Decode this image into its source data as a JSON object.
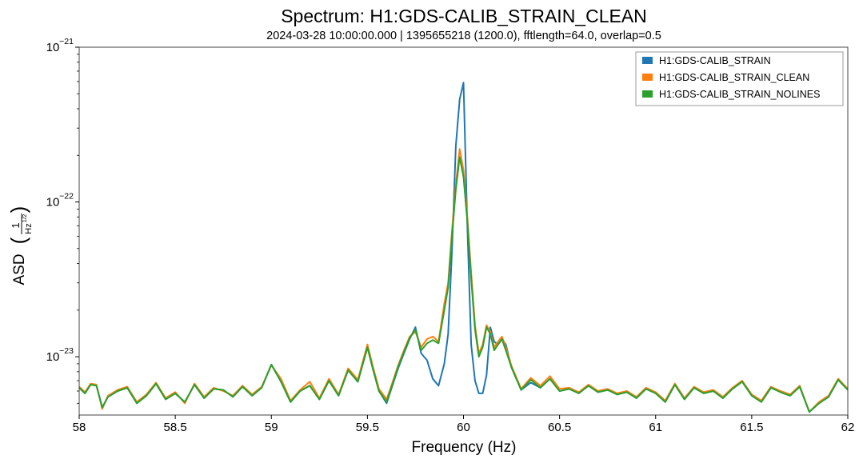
{
  "chart_data": {
    "type": "line",
    "title": "Spectrum: H1:GDS-CALIB_STRAIN_CLEAN",
    "subtitle": "2024-03-28 10:00:00.000 | 1395655218 (1200.0), fftlength=64.0, overlap=0.5",
    "xlabel": "Frequency (Hz)",
    "ylabel": {
      "prefix": "ASD",
      "numerator": "1",
      "denominator": "Hz",
      "denominator_exponent": "1/2"
    },
    "xlim": [
      58,
      62
    ],
    "ylim": [
      4.2e-24,
      1e-21
    ],
    "yscale": "log",
    "grid": false,
    "legend_position": "top-right",
    "x_ticks": [
      "58",
      "58.5",
      "59",
      "59.5",
      "60",
      "60.5",
      "61",
      "61.5",
      "62"
    ],
    "y_ticks": [
      {
        "base": "10",
        "exponent": "−21",
        "value": 1e-21
      },
      {
        "base": "10",
        "exponent": "−22",
        "value": 1e-22
      },
      {
        "base": "10",
        "exponent": "−23",
        "value": 1e-23
      }
    ],
    "series": [
      {
        "name": "H1:GDS-CALIB_STRAIN",
        "color": "#1f77b4",
        "x": [
          58.0,
          58.03,
          58.06,
          58.09,
          58.12,
          58.15,
          58.2,
          58.25,
          58.3,
          58.35,
          58.4,
          58.45,
          58.5,
          58.55,
          58.6,
          58.65,
          58.7,
          58.75,
          58.8,
          58.85,
          58.9,
          58.95,
          59.0,
          59.05,
          59.1,
          59.15,
          59.2,
          59.25,
          59.3,
          59.35,
          59.4,
          59.45,
          59.5,
          59.53,
          59.56,
          59.6,
          59.63,
          59.66,
          59.69,
          59.72,
          59.75,
          59.78,
          59.81,
          59.84,
          59.87,
          59.9,
          59.92,
          59.94,
          59.96,
          59.98,
          60.0,
          60.02,
          60.04,
          60.06,
          60.08,
          60.1,
          60.12,
          60.14,
          60.16,
          60.18,
          60.2,
          60.22,
          60.25,
          60.3,
          60.35,
          60.4,
          60.45,
          60.5,
          60.55,
          60.6,
          60.65,
          60.7,
          60.75,
          60.8,
          60.85,
          60.9,
          60.95,
          61.0,
          61.05,
          61.1,
          61.15,
          61.2,
          61.25,
          61.3,
          61.35,
          61.4,
          61.45,
          61.5,
          61.55,
          61.6,
          61.65,
          61.7,
          61.75,
          61.8,
          61.85,
          61.9,
          61.95,
          62.0
        ],
        "values": [
          6.3e-24,
          5.8e-24,
          6.6e-24,
          6.5e-24,
          4.7e-24,
          5.5e-24,
          6e-24,
          6.3e-24,
          5e-24,
          5.6e-24,
          6.7e-24,
          5.3e-24,
          5.8e-24,
          5.1e-24,
          6.6e-24,
          5.4e-24,
          6.2e-24,
          6.1e-24,
          5.5e-24,
          6.4e-24,
          5.6e-24,
          6.3e-24,
          8.9e-24,
          6.9e-24,
          5.1e-24,
          6e-24,
          6.5e-24,
          5.3e-24,
          7e-24,
          5.6e-24,
          8.2e-24,
          6.9e-24,
          1.15e-23,
          8.2e-24,
          6e-24,
          5e-24,
          6.5e-24,
          8.4e-24,
          1.05e-23,
          1.3e-23,
          1.55e-23,
          1.05e-23,
          9.5e-24,
          7.2e-24,
          6.5e-24,
          9e-24,
          1.4e-23,
          4.8e-23,
          2.3e-22,
          4.6e-22,
          5.9e-22,
          7e-23,
          1.2e-23,
          7e-24,
          5.8e-24,
          5.8e-24,
          7.6e-24,
          1.55e-23,
          1.25e-23,
          1.2e-23,
          1.3e-23,
          1.2e-23,
          8.5e-24,
          6.1e-24,
          6.8e-24,
          6.3e-24,
          7.2e-24,
          6e-24,
          6.2e-24,
          5.8e-24,
          6.5e-24,
          5.9e-24,
          6.1e-24,
          5.7e-24,
          5.9e-24,
          5.4e-24,
          6.2e-24,
          5.8e-24,
          5.1e-24,
          6.6e-24,
          5.3e-24,
          6.3e-24,
          5.8e-24,
          6e-24,
          5.4e-24,
          6.2e-24,
          6.9e-24,
          5.6e-24,
          5.1e-24,
          6.3e-24,
          5.9e-24,
          5.6e-24,
          6.4e-24,
          4.4e-24,
          5e-24,
          5.5e-24,
          7.1e-24,
          6.1e-24
        ]
      },
      {
        "name": "H1:GDS-CALIB_STRAIN_CLEAN",
        "color": "#ff7f0e",
        "x": [
          58.0,
          58.03,
          58.06,
          58.09,
          58.12,
          58.15,
          58.2,
          58.25,
          58.3,
          58.35,
          58.4,
          58.45,
          58.5,
          58.55,
          58.6,
          58.65,
          58.7,
          58.75,
          58.8,
          58.85,
          58.9,
          58.95,
          59.0,
          59.05,
          59.1,
          59.15,
          59.2,
          59.25,
          59.3,
          59.35,
          59.4,
          59.45,
          59.5,
          59.53,
          59.56,
          59.6,
          59.63,
          59.66,
          59.69,
          59.72,
          59.75,
          59.78,
          59.81,
          59.84,
          59.87,
          59.9,
          59.92,
          59.94,
          59.96,
          59.98,
          60.0,
          60.02,
          60.04,
          60.06,
          60.08,
          60.1,
          60.12,
          60.14,
          60.16,
          60.18,
          60.2,
          60.22,
          60.25,
          60.3,
          60.35,
          60.4,
          60.45,
          60.5,
          60.55,
          60.6,
          60.65,
          60.7,
          60.75,
          60.8,
          60.85,
          60.9,
          60.95,
          61.0,
          61.05,
          61.1,
          61.15,
          61.2,
          61.25,
          61.3,
          61.35,
          61.4,
          61.45,
          61.5,
          61.55,
          61.6,
          61.65,
          61.7,
          61.75,
          61.8,
          61.85,
          61.9,
          61.95,
          62.0
        ],
        "values": [
          6.4e-24,
          5.9e-24,
          6.7e-24,
          6.6e-24,
          4.6e-24,
          5.6e-24,
          6.1e-24,
          6.4e-24,
          5.1e-24,
          5.7e-24,
          6.8e-24,
          5.4e-24,
          5.9e-24,
          5e-24,
          6.7e-24,
          5.5e-24,
          6.3e-24,
          6e-24,
          5.6e-24,
          6.5e-24,
          5.7e-24,
          6.4e-24,
          8.8e-24,
          7.2e-24,
          5.2e-24,
          6.1e-24,
          6.9e-24,
          5.4e-24,
          7.2e-24,
          5.7e-24,
          8.4e-24,
          7.1e-24,
          1.2e-23,
          8.5e-24,
          6.2e-24,
          5.3e-24,
          6.8e-24,
          8.8e-24,
          1.1e-23,
          1.35e-23,
          1.45e-23,
          1.15e-23,
          1.3e-23,
          1.35e-23,
          1.25e-23,
          2.2e-23,
          3e-23,
          6.5e-23,
          1.3e-22,
          2.2e-22,
          1.6e-22,
          8e-23,
          3.5e-23,
          1.6e-23,
          1.05e-23,
          1.2e-23,
          1.6e-23,
          1.45e-23,
          1.15e-23,
          1.25e-23,
          1.35e-23,
          1.15e-23,
          8.7e-24,
          6.2e-24,
          7.3e-24,
          6.5e-24,
          7.5e-24,
          6.2e-24,
          6.3e-24,
          5.9e-24,
          6.6e-24,
          6e-24,
          6.2e-24,
          5.8e-24,
          6e-24,
          5.5e-24,
          6.3e-24,
          5.9e-24,
          5.2e-24,
          6.7e-24,
          5.4e-24,
          6.4e-24,
          5.9e-24,
          6.1e-24,
          5.5e-24,
          6.3e-24,
          7e-24,
          5.7e-24,
          5.2e-24,
          6.4e-24,
          6e-24,
          5.7e-24,
          6.5e-24,
          4.4e-24,
          5.1e-24,
          5.6e-24,
          7.2e-24,
          6.2e-24
        ]
      },
      {
        "name": "H1:GDS-CALIB_STRAIN_NOLINES",
        "color": "#2ca02c",
        "x": [
          58.0,
          58.03,
          58.06,
          58.09,
          58.12,
          58.15,
          58.2,
          58.25,
          58.3,
          58.35,
          58.4,
          58.45,
          58.5,
          58.55,
          58.6,
          58.65,
          58.7,
          58.75,
          58.8,
          58.85,
          58.9,
          58.95,
          59.0,
          59.05,
          59.1,
          59.15,
          59.2,
          59.25,
          59.3,
          59.35,
          59.4,
          59.45,
          59.5,
          59.53,
          59.56,
          59.6,
          59.63,
          59.66,
          59.69,
          59.72,
          59.75,
          59.78,
          59.81,
          59.84,
          59.87,
          59.9,
          59.92,
          59.94,
          59.96,
          59.98,
          60.0,
          60.02,
          60.04,
          60.06,
          60.08,
          60.1,
          60.12,
          60.14,
          60.16,
          60.18,
          60.2,
          60.22,
          60.25,
          60.3,
          60.35,
          60.4,
          60.45,
          60.5,
          60.55,
          60.6,
          60.65,
          60.7,
          60.75,
          60.8,
          60.85,
          60.9,
          60.95,
          61.0,
          61.05,
          61.1,
          61.15,
          61.2,
          61.25,
          61.3,
          61.35,
          61.4,
          61.45,
          61.5,
          61.55,
          61.6,
          61.65,
          61.7,
          61.75,
          61.8,
          61.85,
          61.9,
          61.95,
          62.0
        ],
        "values": [
          6.3e-24,
          5.8e-24,
          6.6e-24,
          6.5e-24,
          4.7e-24,
          5.5e-24,
          6e-24,
          6.3e-24,
          5e-24,
          5.6e-24,
          6.7e-24,
          5.3e-24,
          5.8e-24,
          5.1e-24,
          6.6e-24,
          5.4e-24,
          6.2e-24,
          6.1e-24,
          5.5e-24,
          6.4e-24,
          5.6e-24,
          6.3e-24,
          8.9e-24,
          6.9e-24,
          5.1e-24,
          6e-24,
          6.5e-24,
          5.3e-24,
          7e-24,
          5.6e-24,
          8.2e-24,
          6.9e-24,
          1.15e-23,
          8.2e-24,
          6e-24,
          5.1e-24,
          6.6e-24,
          8.6e-24,
          1.07e-23,
          1.32e-23,
          1.5e-23,
          1.1e-23,
          1.22e-23,
          1.28e-23,
          1.22e-23,
          2e-23,
          2.8e-23,
          6e-23,
          1.2e-22,
          1.95e-22,
          1.45e-22,
          7.5e-23,
          3.2e-23,
          1.5e-23,
          1e-23,
          1.15e-23,
          1.55e-23,
          1.4e-23,
          1.1e-23,
          1.2e-23,
          1.3e-23,
          1.1e-23,
          8.5e-24,
          6.1e-24,
          7.1e-24,
          6.3e-24,
          7.2e-24,
          6e-24,
          6.2e-24,
          5.8e-24,
          6.5e-24,
          5.9e-24,
          6.1e-24,
          5.7e-24,
          5.9e-24,
          5.4e-24,
          6.2e-24,
          5.8e-24,
          5.1e-24,
          6.6e-24,
          5.3e-24,
          6.3e-24,
          5.8e-24,
          6e-24,
          5.4e-24,
          6.2e-24,
          6.9e-24,
          5.6e-24,
          5.1e-24,
          6.3e-24,
          5.9e-24,
          5.6e-24,
          6.4e-24,
          4.4e-24,
          5e-24,
          5.5e-24,
          7.1e-24,
          6.1e-24
        ]
      }
    ]
  }
}
